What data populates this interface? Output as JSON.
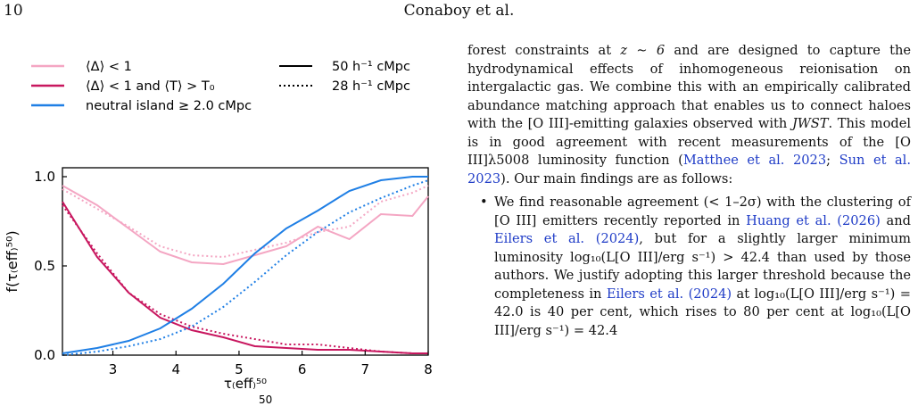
{
  "header": {
    "page_number": "10",
    "running_head": "Conaboy et al."
  },
  "figure": {
    "legend": [
      {
        "label": "⟨Δ⟩ < 1",
        "color": "#f4a6c3",
        "style": "solid"
      },
      {
        "label": "⟨Δ⟩ < 1 and ⟨T⟩ > T₀",
        "color": "#c8175f",
        "style": "solid"
      },
      {
        "label": "neutral island ≥ 2.0 cMpc",
        "color": "#1f7fe5",
        "style": "solid"
      },
      {
        "label": "50 h⁻¹ cMpc",
        "color": "#000000",
        "style": "solid"
      },
      {
        "label": "28 h⁻¹ cMpc",
        "color": "#000000",
        "style": "dotted"
      }
    ],
    "y_label": "f(τ₍eff₎⁵⁰)",
    "x_label": "τ₍eff₎⁵⁰",
    "caption_fragment": "50"
  },
  "chart_data": {
    "type": "line",
    "xlim": [
      2.2,
      8
    ],
    "ylim": [
      0,
      1.05
    ],
    "xticks": [
      3,
      4,
      5,
      6,
      7,
      8
    ],
    "yticks": [
      0.0,
      0.5,
      1.0
    ],
    "ytick_labels": [
      "0.0",
      "0.5",
      "1.0"
    ],
    "grid": false,
    "legend_position": "top",
    "x_label": "τ_eff^50",
    "y_label": "f(τ_eff^50)",
    "series": [
      {
        "name": "⟨Δ⟩ < 1 (50 h⁻¹ cMpc)",
        "color": "#f4a6c3",
        "dash": "solid",
        "x": [
          2.2,
          2.75,
          3.25,
          3.75,
          4.25,
          4.75,
          5.25,
          5.75,
          6.25,
          6.75,
          7.25,
          7.75,
          8.0
        ],
        "y": [
          0.95,
          0.84,
          0.71,
          0.58,
          0.52,
          0.51,
          0.56,
          0.61,
          0.72,
          0.65,
          0.79,
          0.78,
          0.89
        ]
      },
      {
        "name": "⟨Δ⟩ < 1 (28 h⁻¹ cMpc)",
        "color": "#f4a6c3",
        "dash": "dotted",
        "x": [
          2.2,
          2.75,
          3.25,
          3.75,
          4.25,
          4.75,
          5.25,
          5.75,
          6.25,
          6.75,
          7.25,
          7.75,
          8.0
        ],
        "y": [
          0.93,
          0.82,
          0.72,
          0.61,
          0.56,
          0.55,
          0.59,
          0.63,
          0.69,
          0.72,
          0.86,
          0.91,
          0.95
        ]
      },
      {
        "name": "⟨Δ⟩ < 1 and ⟨T⟩ > T₀ (50 h⁻¹ cMpc)",
        "color": "#c8175f",
        "dash": "solid",
        "x": [
          2.2,
          2.75,
          3.25,
          3.75,
          4.25,
          4.75,
          5.25,
          5.75,
          6.25,
          6.75,
          7.25,
          7.75,
          8.0
        ],
        "y": [
          0.86,
          0.55,
          0.35,
          0.21,
          0.14,
          0.1,
          0.05,
          0.04,
          0.03,
          0.03,
          0.02,
          0.01,
          0.01
        ]
      },
      {
        "name": "⟨Δ⟩ < 1 and ⟨T⟩ > T₀ (28 h⁻¹ cMpc)",
        "color": "#c8175f",
        "dash": "dotted",
        "x": [
          2.2,
          2.75,
          3.25,
          3.75,
          4.25,
          4.75,
          5.25,
          5.75,
          6.25,
          6.75,
          7.25,
          7.75,
          8.0
        ],
        "y": [
          0.84,
          0.57,
          0.35,
          0.23,
          0.16,
          0.12,
          0.09,
          0.06,
          0.06,
          0.04,
          0.02,
          0.01,
          0.01
        ]
      },
      {
        "name": "neutral island ≥ 2.0 cMpc (50 h⁻¹ cMpc)",
        "color": "#1f7fe5",
        "dash": "solid",
        "x": [
          2.2,
          2.75,
          3.25,
          3.75,
          4.25,
          4.75,
          5.25,
          5.75,
          6.25,
          6.75,
          7.25,
          7.75,
          8.0
        ],
        "y": [
          0.01,
          0.04,
          0.08,
          0.15,
          0.26,
          0.4,
          0.57,
          0.71,
          0.81,
          0.92,
          0.98,
          1.0,
          1.0
        ]
      },
      {
        "name": "neutral island ≥ 2.0 cMpc (28 h⁻¹ cMpc)",
        "color": "#1f7fe5",
        "dash": "dotted",
        "x": [
          2.2,
          2.75,
          3.25,
          3.75,
          4.25,
          4.75,
          5.25,
          5.75,
          6.25,
          6.75,
          7.25,
          7.75,
          8.0
        ],
        "y": [
          0.0,
          0.02,
          0.05,
          0.09,
          0.16,
          0.27,
          0.41,
          0.56,
          0.69,
          0.8,
          0.88,
          0.95,
          0.98
        ]
      }
    ]
  },
  "body": {
    "para_parts": [
      "forest constraints at ",
      "z ∼ 6",
      " and are designed to capture the hydrodynamical effects of inhomogeneous reionisation on intergalactic gas. We combine this with an empirically calibrated abundance matching approach that enables us to connect haloes with the [O III]-emitting galaxies observed with ",
      "JWST",
      ". This model is in good agreement with recent measurements of the [O III]λ5008 luminosity function (",
      "Matthee et al. 2023",
      "; ",
      "Sun et al. 2023",
      "). Our main findings are as follows:"
    ],
    "bullet_parts": [
      "We find reasonable agreement (< 1–2σ) with the clustering of [O III] emitters recently reported in ",
      "Huang et al. (2026)",
      " and ",
      "Eilers et al. (2024)",
      ", but for a slightly larger minimum luminosity log₁₀(L[O III]/erg s⁻¹) > 42.4 than used by those authors. We justify adopting this larger threshold because the completeness in ",
      "Eilers et al. (2024)",
      " at log₁₀(L[O III]/erg s⁻¹) = 42.0 is 40 per cent, which rises to 80 per cent at log₁₀(L[O III]/erg s⁻¹) = 42.4"
    ]
  }
}
